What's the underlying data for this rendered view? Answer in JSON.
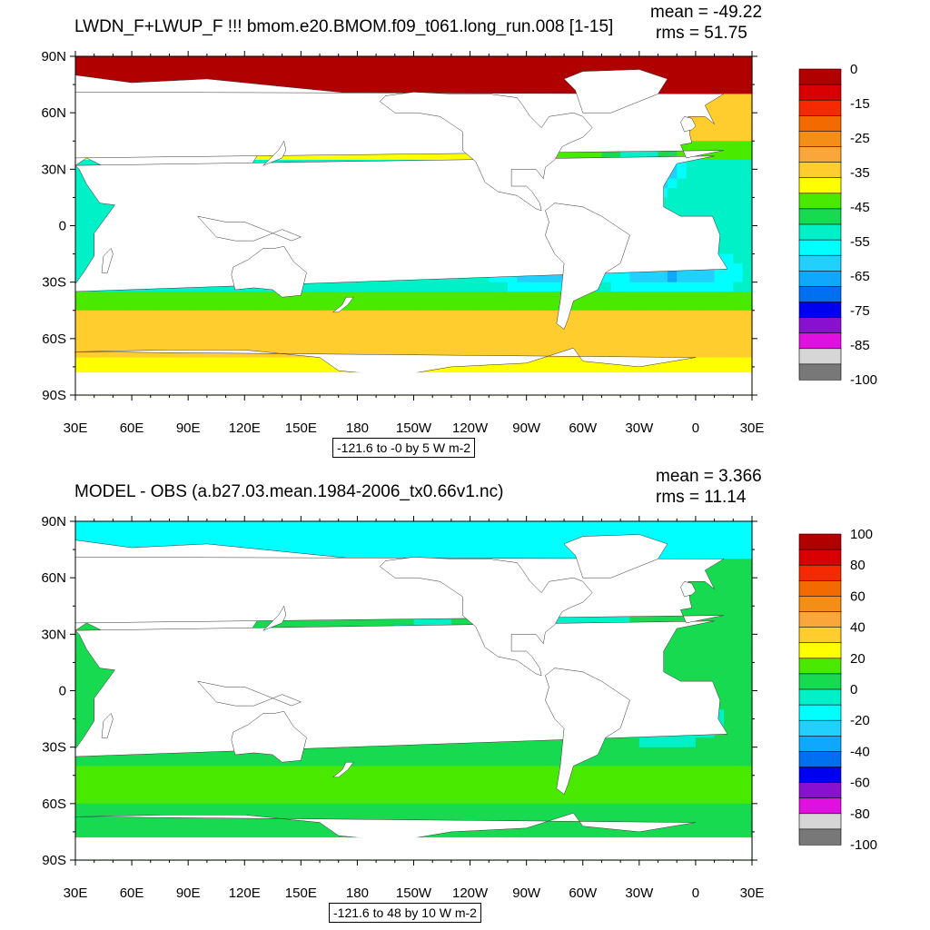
{
  "chart_data": [
    {
      "type": "heatmap",
      "title": "LWDN_F+LWUP_F !!!  bmom.e20.BMOM.f09_t061.long_run.008 [1-15]",
      "stats": {
        "mean_label": "mean = -49.22",
        "rms_label": "rms = 51.75"
      },
      "info_box": "-121.6 to -0 by 5 W m-2",
      "x_tick_labels": [
        "30E",
        "60E",
        "90E",
        "120E",
        "150E",
        "180",
        "150W",
        "120W",
        "90W",
        "60W",
        "30W",
        "0",
        "30E"
      ],
      "y_tick_labels": [
        "90N",
        "60N",
        "30N",
        "0",
        "30S",
        "60S",
        "90S"
      ],
      "colorbar": {
        "labels": [
          "0",
          "-15",
          "-25",
          "-35",
          "-45",
          "-55",
          "-65",
          "-75",
          "-85",
          "-100"
        ],
        "colors": [
          "#b10000",
          "#d80000",
          "#f52a00",
          "#f36b00",
          "#f58e17",
          "#f9a73a",
          "#ffcd2e",
          "#ffff00",
          "#49ea00",
          "#18da50",
          "#00f0c8",
          "#00ffff",
          "#22d0ff",
          "#10a8ff",
          "#0070f0",
          "#0000f0",
          "#8a10d0",
          "#e010e0",
          "#d6d6d6",
          "#787878"
        ]
      }
    },
    {
      "type": "heatmap",
      "title": "MODEL - OBS (a.b27.03.mean.1984-2006_tx0.66v1.nc)",
      "stats": {
        "mean_label": "mean = 3.366",
        "rms_label": "rms = 11.14"
      },
      "info_box": "-121.6 to 48 by 10 W m-2",
      "x_tick_labels": [
        "30E",
        "60E",
        "90E",
        "120E",
        "150E",
        "180",
        "150W",
        "120W",
        "90W",
        "60W",
        "30W",
        "0",
        "30E"
      ],
      "y_tick_labels": [
        "90N",
        "60N",
        "30N",
        "0",
        "30S",
        "60S",
        "90S"
      ],
      "colorbar": {
        "labels": [
          "100",
          "80",
          "60",
          "40",
          "20",
          "0",
          "-20",
          "-40",
          "-60",
          "-80",
          "-100"
        ],
        "colors": [
          "#b10000",
          "#d80000",
          "#f52a00",
          "#f36b00",
          "#f58e17",
          "#f9a73a",
          "#ffcd2e",
          "#ffff00",
          "#49ea00",
          "#18da50",
          "#00f0c8",
          "#00ffff",
          "#22d0ff",
          "#10a8ff",
          "#0070f0",
          "#0000f0",
          "#8a10d0",
          "#e010e0",
          "#d6d6d6",
          "#787878"
        ]
      }
    }
  ]
}
